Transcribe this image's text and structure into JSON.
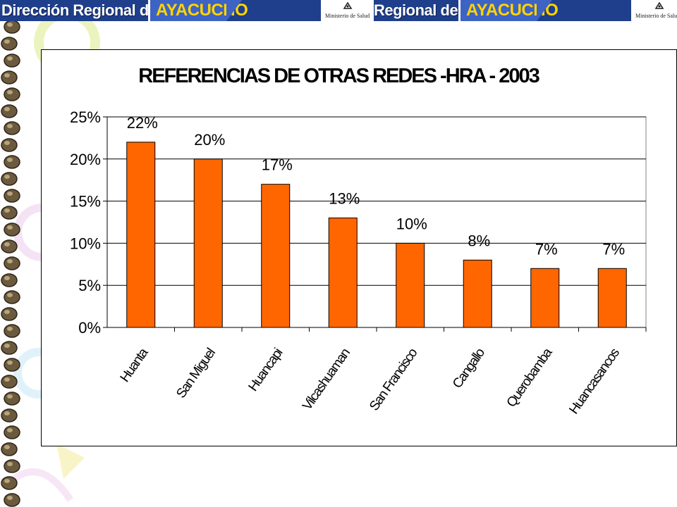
{
  "banner": {
    "title_left": "Dirección Regional de Salud",
    "region_left": "AYACUCHO",
    "ministry_left": "Ministerio de Salud",
    "title_right": "Regional de Salud",
    "region_right": "AYACUCHO",
    "ministry_right": "Ministerio de Salud",
    "colors": {
      "banner_bg": "#1f3f8c",
      "region_bg": "#3d63c4",
      "region_text": "#ffd400"
    }
  },
  "chart_data": {
    "type": "bar",
    "title": "REFERENCIAS DE OTRAS REDES -HRA - 2003",
    "categories": [
      "Huanta",
      "San Miguel",
      "Huancapi",
      "Vilcashuaman",
      "San Francisco",
      "Cangallo",
      "Querobamba",
      "Huancasancos"
    ],
    "values": [
      0.22,
      0.2,
      0.17,
      0.13,
      0.1,
      0.08,
      0.07,
      0.07
    ],
    "data_labels": [
      "22%",
      "20%",
      "17%",
      "13%",
      "10%",
      "8%",
      "7%",
      "7%"
    ],
    "y_ticks": [
      "0%",
      "5%",
      "10%",
      "15%",
      "20%",
      "25%"
    ],
    "ylim": [
      0,
      0.25
    ],
    "grid": true,
    "bar_color": "#ff6600",
    "xlabel": "",
    "ylabel": ""
  }
}
